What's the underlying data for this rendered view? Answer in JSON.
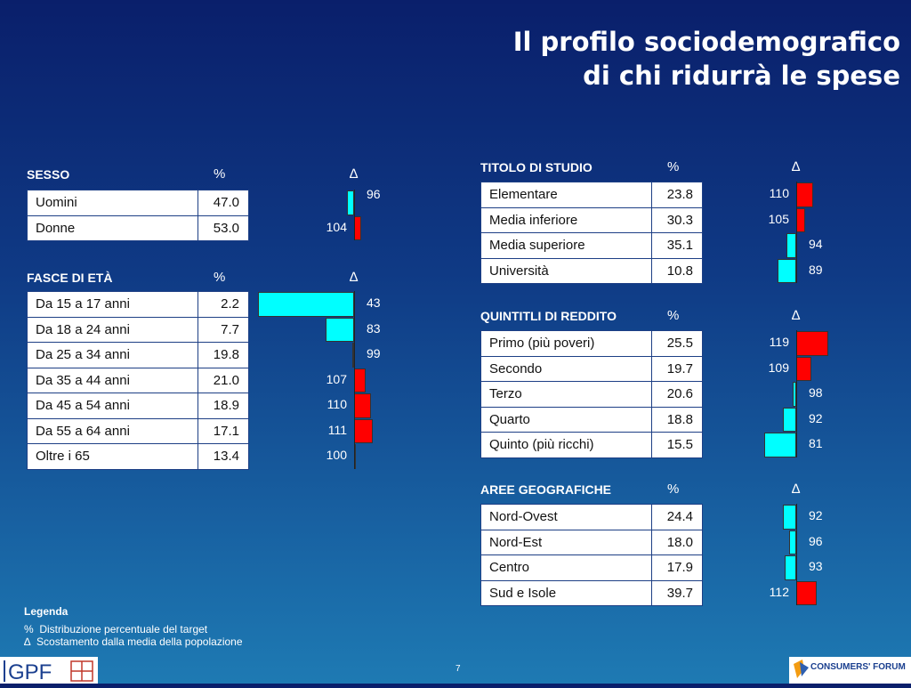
{
  "title": {
    "line1": "Il profilo sociodemografico",
    "line2": "di chi ridurrà le spese"
  },
  "headers": {
    "pct": "%",
    "delta": "∆"
  },
  "sections": {
    "sesso": {
      "title": "SESSO",
      "rows": [
        {
          "label": "Uomini",
          "pct": "47.0",
          "delta": "96"
        },
        {
          "label": "Donne",
          "pct": "53.0",
          "delta": "104"
        }
      ]
    },
    "eta": {
      "title": "FASCE DI ETÀ",
      "rows": [
        {
          "label": "Da 15 a 17 anni",
          "pct": "2.2",
          "delta": "43"
        },
        {
          "label": "Da 18 a 24 anni",
          "pct": "7.7",
          "delta": "83"
        },
        {
          "label": "Da 25 a 34 anni",
          "pct": "19.8",
          "delta": "99"
        },
        {
          "label": "Da 35 a 44 anni",
          "pct": "21.0",
          "delta": "107"
        },
        {
          "label": "Da 45 a 54 anni",
          "pct": "18.9",
          "delta": "110"
        },
        {
          "label": "Da 55 a 64 anni",
          "pct": "17.1",
          "delta": "111"
        },
        {
          "label": "Oltre i 65",
          "pct": "13.4",
          "delta": "100"
        }
      ]
    },
    "studio": {
      "title": "TITOLO DI STUDIO",
      "rows": [
        {
          "label": "Elementare",
          "pct": "23.8",
          "delta": "110"
        },
        {
          "label": "Media inferiore",
          "pct": "30.3",
          "delta": "105"
        },
        {
          "label": "Media superiore",
          "pct": "35.1",
          "delta": "94"
        },
        {
          "label": "Università",
          "pct": "10.8",
          "delta": "89"
        }
      ]
    },
    "reddito": {
      "title": "QUINTITLI DI REDDITO",
      "rows": [
        {
          "label": "Primo (più poveri)",
          "pct": "25.5",
          "delta": "119"
        },
        {
          "label": "Secondo",
          "pct": "19.7",
          "delta": "109"
        },
        {
          "label": "Terzo",
          "pct": "20.6",
          "delta": "98"
        },
        {
          "label": "Quarto",
          "pct": "18.8",
          "delta": "92"
        },
        {
          "label": "Quinto (più ricchi)",
          "pct": "15.5",
          "delta": "81"
        }
      ]
    },
    "aree": {
      "title": "AREE GEOGRAFICHE",
      "rows": [
        {
          "label": "Nord-Ovest",
          "pct": "24.4",
          "delta": "92"
        },
        {
          "label": "Nord-Est",
          "pct": "18.0",
          "delta": "96"
        },
        {
          "label": "Centro",
          "pct": "17.9",
          "delta": "93"
        },
        {
          "label": "Sud e Isole",
          "pct": "39.7",
          "delta": "112"
        }
      ]
    }
  },
  "legend": {
    "title": "Legenda",
    "pct_symbol": "%",
    "pct_text": "Distribuzione percentuale del target",
    "delta_symbol": "∆",
    "delta_text": "Scostamento dalla media della popolazione"
  },
  "page_number": "7",
  "colors": {
    "above_avg": "#ff0000",
    "below_avg": "#00ffff"
  }
}
